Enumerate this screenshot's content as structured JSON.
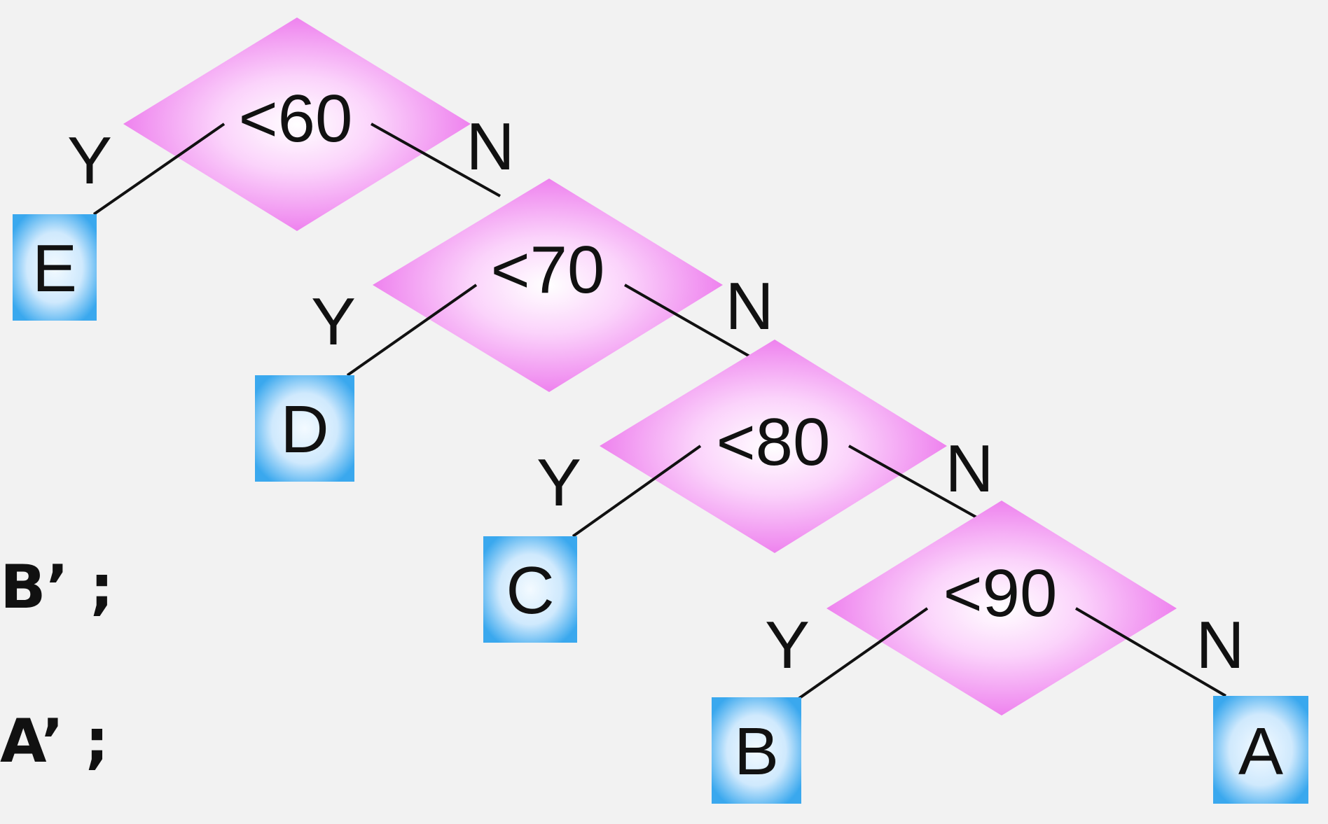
{
  "decisions": [
    {
      "id": "d60",
      "label": "<60",
      "yes": "Y",
      "no": "N"
    },
    {
      "id": "d70",
      "label": "<70",
      "yes": "Y",
      "no": "N"
    },
    {
      "id": "d80",
      "label": "<80",
      "yes": "Y",
      "no": "N"
    },
    {
      "id": "d90",
      "label": "<90",
      "yes": "Y",
      "no": "N"
    }
  ],
  "outcomes": {
    "e": "E",
    "d": "D",
    "c": "C",
    "b": "B",
    "a": "A"
  },
  "side_text": {
    "line1": "B’ ;",
    "line2": "A’ ;"
  },
  "colors": {
    "background": "#f2f2f2",
    "diamond_edge": "#ee82ee",
    "diamond_center": "#ffffff",
    "box_edge": "#3aa8ee",
    "box_center": "#eaf6ff",
    "line": "#111111",
    "text": "#111111"
  }
}
